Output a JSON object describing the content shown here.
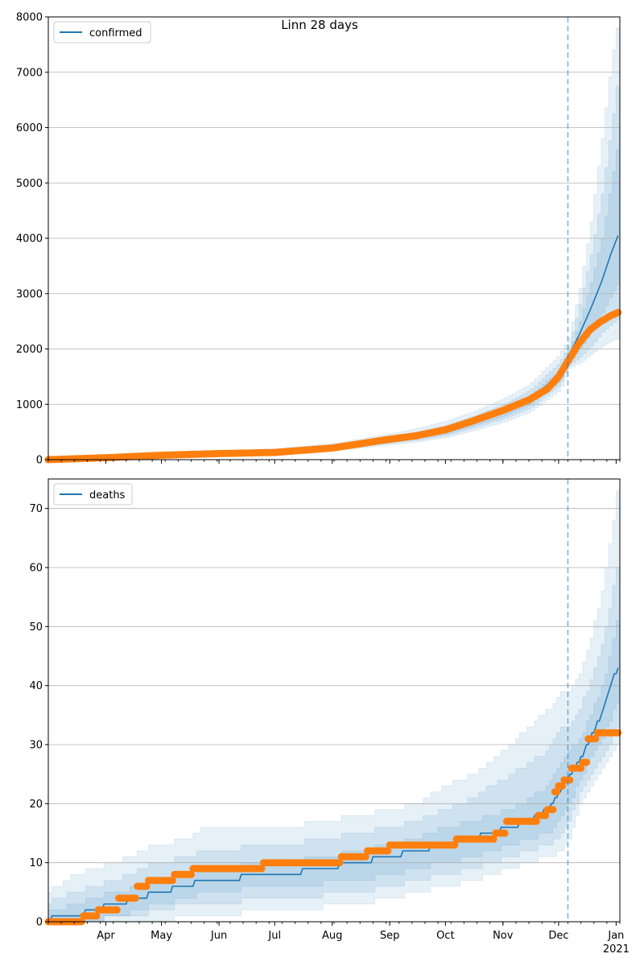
{
  "chart_data": [
    {
      "type": "line",
      "title": "Linn 28 days",
      "legend": {
        "label": "confirmed",
        "placement": "top-left"
      },
      "ylim": [
        0,
        8000
      ],
      "y_ticks": [
        0,
        1000,
        2000,
        3000,
        4000,
        5000,
        6000,
        7000,
        8000
      ],
      "x_range": [
        "2020-03-01",
        "2021-01-03"
      ],
      "grid": "y",
      "forecast_start": "2020-12-06",
      "colors": {
        "model": "#1f77b4",
        "observed": "#ff7f0e",
        "band": "#1f77b4"
      },
      "model_line": {
        "dates": [
          "2020-03-01",
          "2020-04-01",
          "2020-05-01",
          "2020-06-01",
          "2020-07-01",
          "2020-08-01",
          "2020-09-01",
          "2020-09-15",
          "2020-10-01",
          "2020-10-15",
          "2020-11-01",
          "2020-11-15",
          "2020-12-01",
          "2020-12-06",
          "2020-12-12",
          "2020-12-18",
          "2020-12-24",
          "2020-12-29",
          "2021-01-02"
        ],
        "values": [
          0,
          35,
          80,
          110,
          140,
          210,
          350,
          420,
          520,
          670,
          860,
          1080,
          1520,
          1850,
          2250,
          2700,
          3200,
          3700,
          4050
        ]
      },
      "observed": {
        "dates": [
          "2020-03-01",
          "2020-04-01",
          "2020-05-01",
          "2020-06-01",
          "2020-07-01",
          "2020-08-01",
          "2020-09-01",
          "2020-09-15",
          "2020-10-01",
          "2020-10-15",
          "2020-11-01",
          "2020-11-15",
          "2020-11-25",
          "2020-12-01",
          "2020-12-06",
          "2020-12-12",
          "2020-12-18",
          "2020-12-24",
          "2020-12-29",
          "2021-01-02"
        ],
        "values": [
          0,
          35,
          80,
          110,
          130,
          210,
          370,
          430,
          540,
          690,
          890,
          1080,
          1280,
          1500,
          1780,
          2100,
          2350,
          2500,
          2600,
          2660
        ]
      },
      "bands": [
        {
          "upper": [
            0,
            60,
            120,
            160,
            200,
            290,
            470,
            560,
            700,
            860,
            1100,
            1360,
            1900,
            2200,
            3100,
            4300,
            5800,
            7200,
            8000
          ],
          "lower": [
            0,
            20,
            50,
            75,
            100,
            160,
            270,
            320,
            400,
            520,
            680,
            860,
            1250,
            1650,
            1750,
            1900,
            2050,
            2150,
            2200
          ]
        },
        {
          "upper": [
            0,
            50,
            105,
            140,
            180,
            260,
            420,
            500,
            620,
            780,
            1000,
            1250,
            1750,
            2050,
            2800,
            3700,
            4800,
            6000,
            7000
          ],
          "lower": [
            0,
            25,
            60,
            85,
            110,
            175,
            300,
            350,
            440,
            570,
            740,
            930,
            1350,
            1700,
            1850,
            2050,
            2300,
            2450,
            2550
          ]
        },
        {
          "upper": [
            0,
            42,
            92,
            125,
            160,
            235,
            385,
            460,
            570,
            720,
            930,
            1160,
            1620,
            1950,
            2500,
            3200,
            4000,
            5000,
            5800
          ],
          "lower": [
            0,
            30,
            68,
            95,
            120,
            190,
            320,
            380,
            470,
            610,
            790,
            1000,
            1420,
            1750,
            2000,
            2300,
            2650,
            3000,
            3200
          ]
        }
      ]
    },
    {
      "type": "line",
      "legend": {
        "label": "deaths",
        "placement": "top-left"
      },
      "ylim": [
        0,
        75
      ],
      "y_ticks": [
        0,
        10,
        20,
        30,
        40,
        50,
        60,
        70
      ],
      "x_range": [
        "2020-03-01",
        "2021-01-03"
      ],
      "x_tick_labels": [
        {
          "date": "2020-04-01",
          "label": "Apr"
        },
        {
          "date": "2020-05-01",
          "label": "May"
        },
        {
          "date": "2020-06-01",
          "label": "Jun"
        },
        {
          "date": "2020-07-01",
          "label": "Jul"
        },
        {
          "date": "2020-08-01",
          "label": "Aug"
        },
        {
          "date": "2020-09-01",
          "label": "Sep"
        },
        {
          "date": "2020-10-01",
          "label": "Oct"
        },
        {
          "date": "2020-11-01",
          "label": "Nov"
        },
        {
          "date": "2020-12-01",
          "label": "Dec"
        },
        {
          "date": "2021-01-01",
          "label": "Jan",
          "sublabel": "2021"
        }
      ],
      "grid": "y",
      "forecast_start": "2020-12-06",
      "colors": {
        "model": "#1f77b4",
        "observed": "#ff7f0e",
        "band": "#1f77b4"
      },
      "model_line": {
        "dates": [
          "2020-03-01",
          "2020-03-05",
          "2020-03-15",
          "2020-03-26",
          "2020-04-05",
          "2020-04-20",
          "2020-04-28",
          "2020-05-15",
          "2020-05-22",
          "2020-07-05",
          "2020-08-15",
          "2020-09-15",
          "2020-10-01",
          "2020-10-15",
          "2020-10-25",
          "2020-11-05",
          "2020-11-15",
          "2020-11-25",
          "2020-12-02",
          "2020-12-06",
          "2020-12-12",
          "2020-12-18",
          "2020-12-24",
          "2020-12-29",
          "2021-01-02"
        ],
        "values": [
          0,
          1,
          1,
          2,
          3,
          4,
          5,
          6,
          7,
          8,
          10,
          12,
          13,
          14,
          15,
          16,
          17,
          19,
          22,
          24,
          27,
          31,
          35,
          40,
          43
        ]
      },
      "observed": {
        "dates": [
          "2020-03-01",
          "2020-03-10",
          "2020-03-20",
          "2020-03-28",
          "2020-04-08",
          "2020-04-18",
          "2020-04-24",
          "2020-05-08",
          "2020-05-18",
          "2020-06-25",
          "2020-08-06",
          "2020-08-20",
          "2020-09-01",
          "2020-10-07",
          "2020-10-28",
          "2020-11-03",
          "2020-11-13",
          "2020-11-20",
          "2020-11-25",
          "2020-11-29",
          "2020-12-01",
          "2020-12-04",
          "2020-12-08",
          "2020-12-14",
          "2020-12-17",
          "2020-12-22",
          "2020-12-29",
          "2021-01-02"
        ],
        "values": [
          0,
          0,
          1,
          2,
          4,
          6,
          7,
          8,
          9,
          10,
          11,
          12,
          13,
          14,
          15,
          17,
          17,
          18,
          19,
          22,
          23,
          24,
          26,
          27,
          31,
          32,
          32,
          32
        ]
      },
      "bands": [
        {
          "upper": [
            5,
            6,
            8,
            9,
            10,
            12,
            13,
            14,
            16,
            16,
            18,
            20,
            23,
            25,
            27,
            30,
            33,
            36,
            39,
            39,
            42,
            48,
            56,
            66,
            75
          ],
          "lower": [
            0,
            0,
            0,
            0,
            0,
            0,
            0,
            1,
            1,
            2,
            3,
            5,
            6,
            7,
            8,
            9,
            10,
            11,
            12,
            14,
            20,
            23,
            26,
            28,
            30
          ]
        },
        {
          "upper": [
            3,
            4,
            5,
            6,
            7,
            9,
            10,
            11,
            12,
            13,
            15,
            17,
            19,
            21,
            23,
            25,
            27,
            29,
            33,
            33,
            36,
            41,
            47,
            55,
            62
          ],
          "lower": [
            0,
            0,
            0,
            0,
            1,
            1,
            2,
            3,
            3,
            4,
            5,
            7,
            8,
            9,
            10,
            11,
            12,
            13,
            15,
            17,
            22,
            25,
            28,
            31,
            33
          ]
        },
        {
          "upper": [
            2,
            2,
            3,
            4,
            5,
            6,
            7,
            8,
            9,
            10,
            12,
            14,
            16,
            17,
            18,
            19,
            21,
            23,
            27,
            29,
            31,
            35,
            40,
            46,
            53
          ],
          "lower": [
            0,
            0,
            0,
            0,
            1,
            2,
            3,
            4,
            5,
            6,
            7,
            9,
            10,
            11,
            12,
            13,
            14,
            15,
            18,
            20,
            24,
            28,
            31,
            35,
            37
          ]
        }
      ]
    }
  ]
}
